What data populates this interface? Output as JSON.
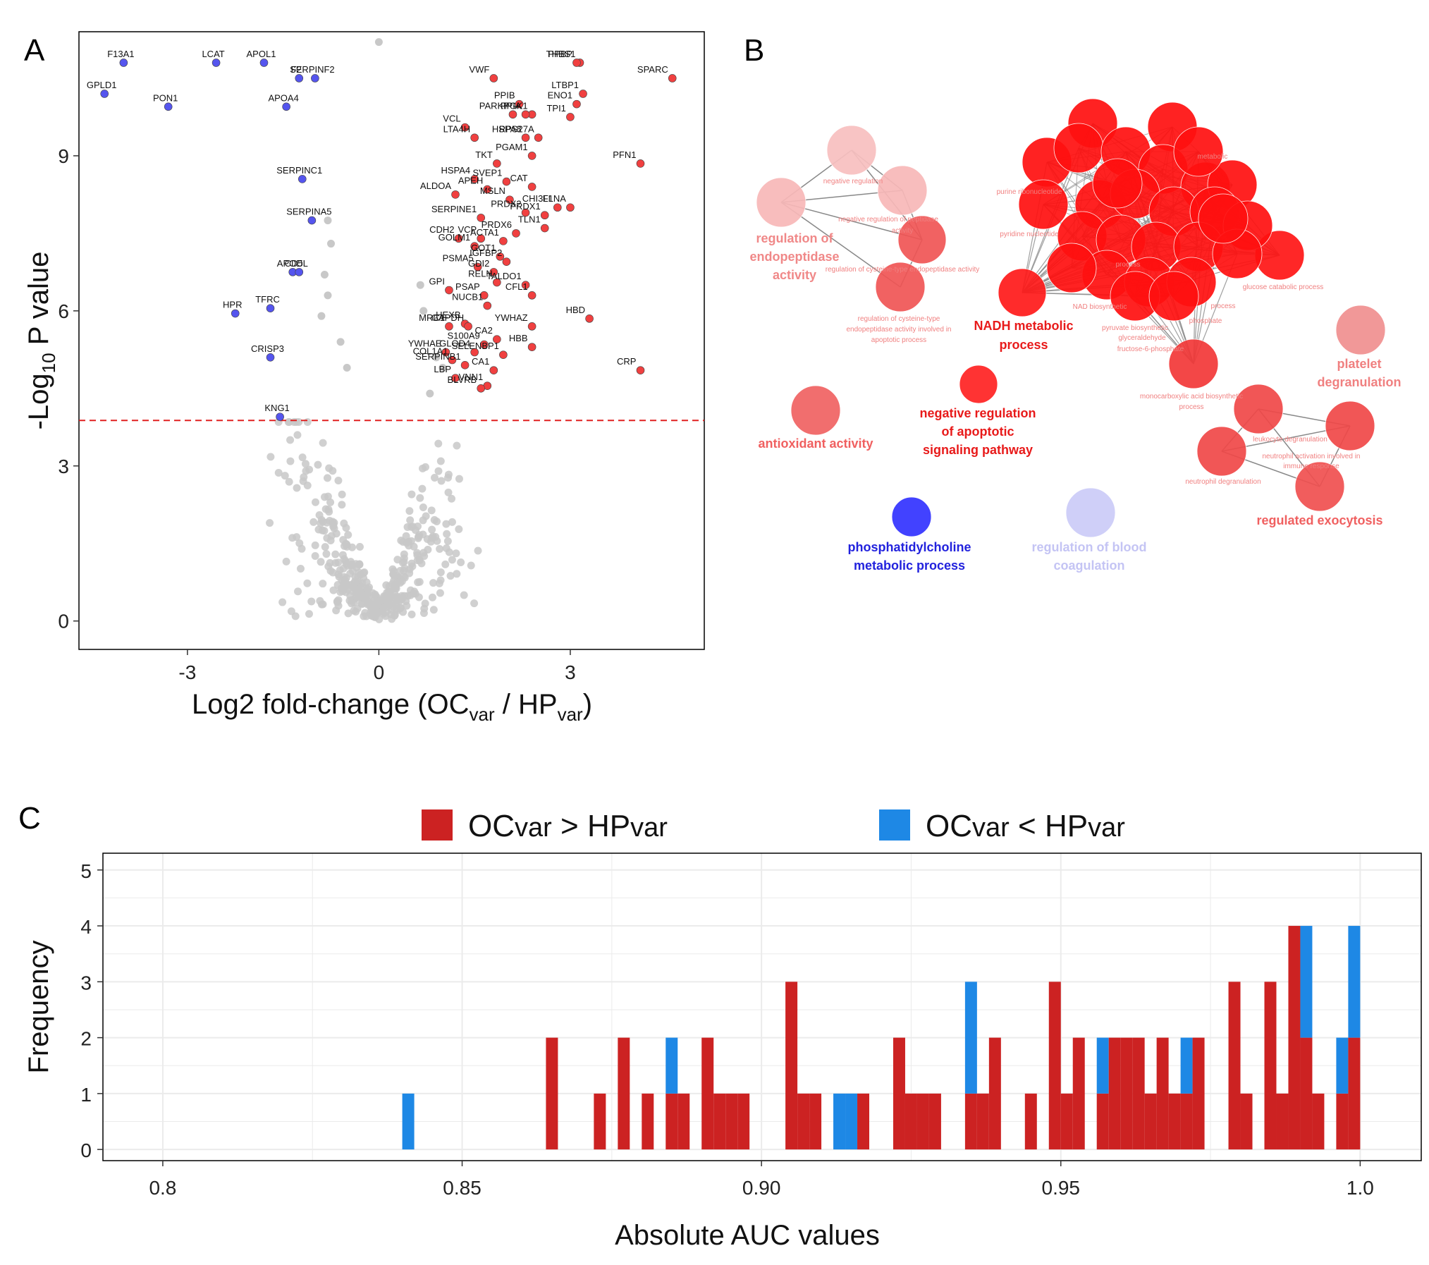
{
  "colors": {
    "up": "#f04040",
    "down": "#5555ee",
    "ns": "#c8c8c8",
    "threshold": "#e02020",
    "hist_up": "#cc2222",
    "hist_down": "#1e88e5",
    "net_edge": "#888888"
  },
  "panels": {
    "a": "A",
    "b": "B",
    "c": "C"
  },
  "chart_data": [
    {
      "id": "volcano",
      "type": "scatter",
      "xlabel_main": "Log2 fold-change (OC",
      "xlabel_sub1": "var",
      "xlabel_mid": " / HP",
      "xlabel_sub2": "var",
      "xlabel_end": ")",
      "ylabel_pre": "-Log",
      "ylabel_sub": "10",
      "ylabel_post": " P value",
      "xlim": [
        -4.7,
        5.1
      ],
      "ylim": [
        -0.55,
        11.4
      ],
      "xticks": [
        -3,
        0,
        3
      ],
      "yticks": [
        0,
        3,
        6,
        9
      ],
      "threshold_y": 3.88,
      "up_genes": [
        {
          "gene": "THBS1",
          "x": 3.15,
          "y": 10.8
        },
        {
          "gene": "PPBP",
          "x": 3.1,
          "y": 10.8
        },
        {
          "gene": "SPARC",
          "x": 4.6,
          "y": 10.5
        },
        {
          "gene": "VWF",
          "x": 1.8,
          "y": 10.5
        },
        {
          "gene": "LTBP1",
          "x": 3.2,
          "y": 10.2
        },
        {
          "gene": "PPIB",
          "x": 2.2,
          "y": 10.0
        },
        {
          "gene": "PGK1",
          "x": 2.4,
          "y": 9.8
        },
        {
          "gene": "ENO1",
          "x": 3.1,
          "y": 10.0
        },
        {
          "gene": "VCL",
          "x": 1.35,
          "y": 9.55
        },
        {
          "gene": "PARK7",
          "x": 2.1,
          "y": 9.8
        },
        {
          "gene": "PPIA",
          "x": 2.3,
          "y": 9.8
        },
        {
          "gene": "TPI1",
          "x": 3.0,
          "y": 9.75
        },
        {
          "gene": "HSPA8",
          "x": 2.3,
          "y": 9.35
        },
        {
          "gene": "RPS27A",
          "x": 2.5,
          "y": 9.35
        },
        {
          "gene": "LTA4H",
          "x": 1.5,
          "y": 9.35
        },
        {
          "gene": "TKT",
          "x": 1.85,
          "y": 8.85
        },
        {
          "gene": "PGAM1",
          "x": 2.4,
          "y": 9.0
        },
        {
          "gene": "PFN1",
          "x": 4.1,
          "y": 8.85
        },
        {
          "gene": "HSPA4",
          "x": 1.5,
          "y": 8.55
        },
        {
          "gene": "SVEP1",
          "x": 2.0,
          "y": 8.5
        },
        {
          "gene": "CAT",
          "x": 2.4,
          "y": 8.4
        },
        {
          "gene": "ALDOA",
          "x": 1.2,
          "y": 8.25
        },
        {
          "gene": "APEH",
          "x": 1.7,
          "y": 8.35
        },
        {
          "gene": "MSLN",
          "x": 2.05,
          "y": 8.15
        },
        {
          "gene": "CHI3L1",
          "x": 2.8,
          "y": 8.0
        },
        {
          "gene": "FLNA",
          "x": 3.0,
          "y": 8.0
        },
        {
          "gene": "SERPINE1",
          "x": 1.6,
          "y": 7.8
        },
        {
          "gene": "PRDX2",
          "x": 2.3,
          "y": 7.9
        },
        {
          "gene": "PRDX1",
          "x": 2.6,
          "y": 7.85
        },
        {
          "gene": "TLN1",
          "x": 2.6,
          "y": 7.6
        },
        {
          "gene": "CDH2",
          "x": 1.25,
          "y": 7.4
        },
        {
          "gene": "VCP",
          "x": 1.6,
          "y": 7.4
        },
        {
          "gene": "PRDX6",
          "x": 2.15,
          "y": 7.5
        },
        {
          "gene": "GOLM1",
          "x": 1.5,
          "y": 7.25
        },
        {
          "gene": "ACTA1",
          "x": 1.95,
          "y": 7.35
        },
        {
          "gene": "GOT1",
          "x": 1.9,
          "y": 7.05
        },
        {
          "gene": "IGFBP2",
          "x": 2.0,
          "y": 6.95
        },
        {
          "gene": "PSMA5",
          "x": 1.55,
          "y": 6.85
        },
        {
          "gene": "GDI2",
          "x": 1.8,
          "y": 6.75
        },
        {
          "gene": "RELN",
          "x": 1.85,
          "y": 6.55
        },
        {
          "gene": "GPI",
          "x": 1.1,
          "y": 6.4
        },
        {
          "gene": "TALDO1",
          "x": 2.3,
          "y": 6.5
        },
        {
          "gene": "PSAP",
          "x": 1.65,
          "y": 6.3
        },
        {
          "gene": "CFL1",
          "x": 2.4,
          "y": 6.3
        },
        {
          "gene": "NUCB1",
          "x": 1.7,
          "y": 6.1
        },
        {
          "gene": "HBD",
          "x": 3.3,
          "y": 5.85
        },
        {
          "gene": "HEXB",
          "x": 1.35,
          "y": 5.75
        },
        {
          "gene": "GAPDH",
          "x": 1.4,
          "y": 5.7
        },
        {
          "gene": "YWHAZ",
          "x": 2.4,
          "y": 5.7
        },
        {
          "gene": "MRC1",
          "x": 1.1,
          "y": 5.7
        },
        {
          "gene": "S100A9",
          "x": 1.65,
          "y": 5.35
        },
        {
          "gene": "CA2",
          "x": 1.85,
          "y": 5.45
        },
        {
          "gene": "HBB",
          "x": 2.4,
          "y": 5.3
        },
        {
          "gene": "YWHAE",
          "x": 1.05,
          "y": 5.2
        },
        {
          "gene": "GLOD4",
          "x": 1.5,
          "y": 5.2
        },
        {
          "gene": "CRP",
          "x": 4.1,
          "y": 4.85
        },
        {
          "gene": "COL1A1",
          "x": 1.15,
          "y": 5.05
        },
        {
          "gene": "SELENBP1",
          "x": 1.95,
          "y": 5.15
        },
        {
          "gene": "SERPINB1",
          "x": 1.35,
          "y": 4.95
        },
        {
          "gene": "CA1",
          "x": 1.8,
          "y": 4.85
        },
        {
          "gene": "LBP",
          "x": 1.2,
          "y": 4.7
        },
        {
          "gene": "VNN1",
          "x": 1.7,
          "y": 4.55
        },
        {
          "gene": "BLVRB",
          "x": 1.6,
          "y": 4.5
        }
      ],
      "down_genes": [
        {
          "gene": "APOL1",
          "x": -1.8,
          "y": 10.8
        },
        {
          "gene": "F13A1",
          "x": -4.0,
          "y": 10.8
        },
        {
          "gene": "LCAT",
          "x": -2.55,
          "y": 10.8
        },
        {
          "gene": "F2",
          "x": -1.25,
          "y": 10.5
        },
        {
          "gene": "SERPINF2",
          "x": -1.0,
          "y": 10.5
        },
        {
          "gene": "GPLD1",
          "x": -4.3,
          "y": 10.2
        },
        {
          "gene": "APOA4",
          "x": -1.45,
          "y": 9.95
        },
        {
          "gene": "PON1",
          "x": -3.3,
          "y": 9.95
        },
        {
          "gene": "SERPINC1",
          "x": -1.2,
          "y": 8.55
        },
        {
          "gene": "SERPINA5",
          "x": -1.05,
          "y": 7.75
        },
        {
          "gene": "APOD",
          "x": -1.35,
          "y": 6.75
        },
        {
          "gene": "CD5L",
          "x": -1.25,
          "y": 6.75
        },
        {
          "gene": "HPR",
          "x": -2.25,
          "y": 5.95
        },
        {
          "gene": "TFRC",
          "x": -1.7,
          "y": 6.05
        },
        {
          "gene": "CRISP3",
          "x": -1.7,
          "y": 5.1
        },
        {
          "gene": "KNG1",
          "x": -1.55,
          "y": 3.95
        }
      ]
    },
    {
      "id": "network",
      "type": "network",
      "labels": {
        "endopeptidase": [
          "regulation of",
          "endopeptidase",
          "activity"
        ],
        "nadh": [
          "NADH metabolic",
          "process"
        ],
        "apoptotic": [
          "negative regulation",
          "of apoptotic",
          "signaling pathway"
        ],
        "antioxidant": [
          "antioxidant activity"
        ],
        "phosphatidylcholine": [
          "phosphatidylcholine",
          "metabolic process"
        ],
        "blood_coag": [
          "regulation of blood",
          "coagulation"
        ],
        "platelet": [
          "platelet",
          "degranulation"
        ],
        "exocytosis": [
          "regulated exocytosis"
        ],
        "small1": "regulation of cysteine-type endopeptidase activity",
        "small2": "regulation of cysteine-type",
        "small3": "endopeptidase activity involved in",
        "small4": "apoptotic process",
        "small5": "negative regulation of peptidase",
        "small6": "activity",
        "small7": "negative regulation",
        "small8": "purine ribonucleotide",
        "small9": "pyridine nucleotide",
        "small10": "NAD biosynthetic",
        "small11": "pyruvate biosynthetic",
        "small12": "glyceraldehyde",
        "small13": "fructose-6-phosphate",
        "small14": "monocarboxylic acid biosynthetic",
        "small15": "process",
        "small16": "glucose catabolic process",
        "small17": "metabolic",
        "small18": "leukocyte degranulation",
        "small19": "neutrophil degranulation",
        "small20": "neutrophil activation involved in",
        "small21": "immune response",
        "small22": "phosphate",
        "small23": "process",
        "small24": "process"
      }
    },
    {
      "id": "auc_hist",
      "type": "bar",
      "title": "",
      "legend": [
        {
          "name_main": "OC",
          "name_sub": "var",
          "name_op": " > HP",
          "name_sub2": "var",
          "key": "up"
        },
        {
          "name_main": "OC",
          "name_sub": "var",
          "name_op": " < HP",
          "name_sub2": "var",
          "key": "down"
        }
      ],
      "xlabel": "Absolute AUC values",
      "ylabel": "Frequency",
      "xlim": [
        0.79,
        1.0102
      ],
      "ylim": [
        -0.2,
        5.3
      ],
      "xticks": [
        "0.8",
        "0.85",
        "0.90",
        "0.95",
        "1.0"
      ],
      "xtick_values": [
        0.8,
        0.85,
        0.9,
        0.95,
        1.0
      ],
      "yticks": [
        0,
        1,
        2,
        3,
        4,
        5
      ],
      "bin_width": 0.002,
      "bins": [
        {
          "x": 0.84,
          "up": 0,
          "down": 1
        },
        {
          "x": 0.864,
          "up": 2,
          "down": 0
        },
        {
          "x": 0.872,
          "up": 1,
          "down": 0
        },
        {
          "x": 0.876,
          "up": 2,
          "down": 0
        },
        {
          "x": 0.88,
          "up": 1,
          "down": 0
        },
        {
          "x": 0.884,
          "up": 1,
          "down": 1
        },
        {
          "x": 0.886,
          "up": 1,
          "down": 0
        },
        {
          "x": 0.89,
          "up": 2,
          "down": 0
        },
        {
          "x": 0.892,
          "up": 1,
          "down": 0
        },
        {
          "x": 0.894,
          "up": 1,
          "down": 0
        },
        {
          "x": 0.896,
          "up": 1,
          "down": 0
        },
        {
          "x": 0.904,
          "up": 3,
          "down": 0
        },
        {
          "x": 0.906,
          "up": 1,
          "down": 0
        },
        {
          "x": 0.908,
          "up": 1,
          "down": 0
        },
        {
          "x": 0.912,
          "up": 0,
          "down": 1
        },
        {
          "x": 0.914,
          "up": 0,
          "down": 1
        },
        {
          "x": 0.916,
          "up": 1,
          "down": 0
        },
        {
          "x": 0.922,
          "up": 2,
          "down": 0
        },
        {
          "x": 0.924,
          "up": 1,
          "down": 0
        },
        {
          "x": 0.926,
          "up": 1,
          "down": 0
        },
        {
          "x": 0.928,
          "up": 1,
          "down": 0
        },
        {
          "x": 0.934,
          "up": 1,
          "down": 2
        },
        {
          "x": 0.936,
          "up": 1,
          "down": 0
        },
        {
          "x": 0.938,
          "up": 2,
          "down": 0
        },
        {
          "x": 0.944,
          "up": 1,
          "down": 0
        },
        {
          "x": 0.948,
          "up": 3,
          "down": 0
        },
        {
          "x": 0.95,
          "up": 1,
          "down": 0
        },
        {
          "x": 0.952,
          "up": 2,
          "down": 0
        },
        {
          "x": 0.956,
          "up": 1,
          "down": 1
        },
        {
          "x": 0.958,
          "up": 2,
          "down": 0
        },
        {
          "x": 0.96,
          "up": 2,
          "down": 0
        },
        {
          "x": 0.962,
          "up": 2,
          "down": 0
        },
        {
          "x": 0.964,
          "up": 1,
          "down": 0
        },
        {
          "x": 0.966,
          "up": 2,
          "down": 0
        },
        {
          "x": 0.968,
          "up": 1,
          "down": 0
        },
        {
          "x": 0.97,
          "up": 1,
          "down": 1
        },
        {
          "x": 0.972,
          "up": 2,
          "down": 0
        },
        {
          "x": 0.978,
          "up": 3,
          "down": 0
        },
        {
          "x": 0.98,
          "up": 1,
          "down": 0
        },
        {
          "x": 0.984,
          "up": 3,
          "down": 0
        },
        {
          "x": 0.986,
          "up": 1,
          "down": 0
        },
        {
          "x": 0.988,
          "up": 4,
          "down": 0
        },
        {
          "x": 0.99,
          "up": 2,
          "down": 2
        },
        {
          "x": 0.992,
          "up": 1,
          "down": 0
        },
        {
          "x": 0.996,
          "up": 1,
          "down": 1
        },
        {
          "x": 0.998,
          "up": 2,
          "down": 2
        }
      ]
    }
  ]
}
